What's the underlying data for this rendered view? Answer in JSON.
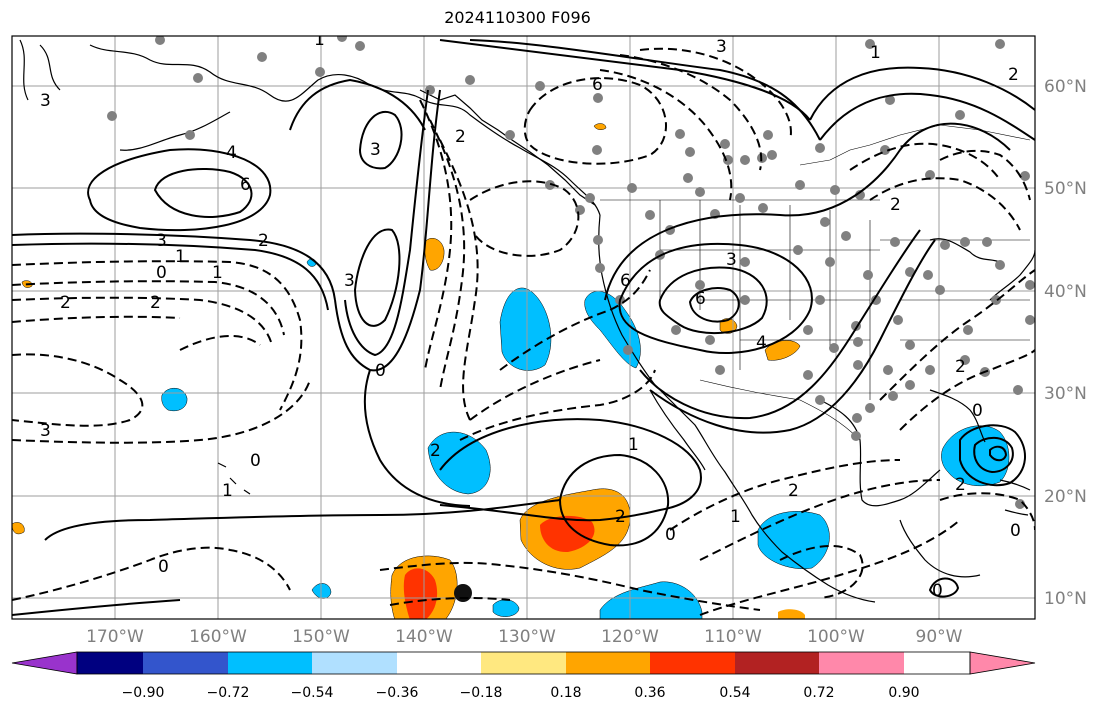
{
  "title": "2024110300 F096",
  "map": {
    "lon_range": [
      -180,
      -81
    ],
    "lat_range": [
      8,
      65
    ],
    "lat_labels": [
      "60°N",
      "50°N",
      "40°N",
      "30°N",
      "20°N",
      "10°N"
    ],
    "lon_labels": [
      "170°W",
      "160°W",
      "150°W",
      "140°W",
      "130°W",
      "120°W",
      "110°W",
      "100°W",
      "90°W"
    ],
    "colors": {
      "land_line": "#000000",
      "grid": "#9e9e9e",
      "station_dot": "#808080",
      "axis_label": "#808080"
    }
  },
  "contour_labels": [
    "3",
    "2",
    "1",
    "6",
    "4",
    "6",
    "3",
    "2",
    "1",
    "0",
    "1",
    "2",
    "2",
    "3",
    "3",
    "0",
    "2",
    "3",
    "6",
    "4",
    "6",
    "2",
    "1",
    "0",
    "1",
    "2",
    "2",
    "3",
    "1",
    "3",
    "2",
    "0",
    "0",
    "1",
    "2",
    "0",
    "0",
    "0",
    "2"
  ],
  "colorbar": {
    "colors": [
      "#9933cc",
      "#000080",
      "#3355cc",
      "#00bfff",
      "#b0e0ff",
      "#ffffff",
      "#ffe880",
      "#ffa500",
      "#ff3300",
      "#b22222",
      "#ff88aa"
    ],
    "tick_labels": [
      "−0.90",
      "−0.72",
      "−0.54",
      "−0.36",
      "−0.18",
      "0.18",
      "0.36",
      "0.54",
      "0.72",
      "0.90"
    ]
  }
}
